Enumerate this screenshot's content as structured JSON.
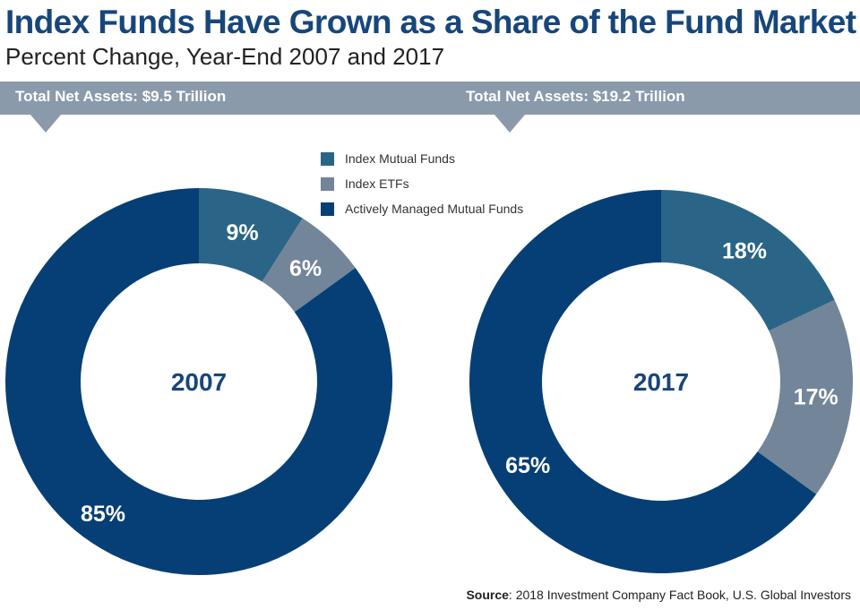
{
  "header": {
    "title": "Index Funds Have Grown as a Share of the Fund Market",
    "subtitle": "Percent Change, Year-End 2007 and 2017"
  },
  "banner": {
    "left_text": "Total Net Assets: $9.5 Trillion",
    "right_text": "Total Net Assets: $19.2 Trillion",
    "color": "#8a9aab"
  },
  "legend": [
    {
      "label": "Index Mutual Funds",
      "color": "#2a6587"
    },
    {
      "label": "Index ETFs",
      "color": "#738599"
    },
    {
      "label": "Actively Managed Mutual Funds",
      "color": "#063f75"
    }
  ],
  "chart_data": [
    {
      "type": "pie",
      "title": "Total Net Assets: $9.5 Trillion",
      "center_label": "2007",
      "categories": [
        "Index Mutual Funds",
        "Index ETFs",
        "Actively Managed Mutual Funds"
      ],
      "values": [
        9,
        6,
        85
      ],
      "value_labels": [
        "9%",
        "6%",
        "85%"
      ],
      "colors": [
        "#2a6587",
        "#738599",
        "#063f75"
      ]
    },
    {
      "type": "pie",
      "title": "Total Net Assets: $19.2 Trillion",
      "center_label": "2017",
      "categories": [
        "Index Mutual Funds",
        "Index ETFs",
        "Actively Managed Mutual Funds"
      ],
      "values": [
        18,
        17,
        65
      ],
      "value_labels": [
        "18%",
        "17%",
        "65%"
      ],
      "colors": [
        "#2a6587",
        "#738599",
        "#063f75"
      ]
    }
  ],
  "source": {
    "label": "Source",
    "text": ": 2018 Investment Company Fact Book, U.S. Global Investors"
  }
}
